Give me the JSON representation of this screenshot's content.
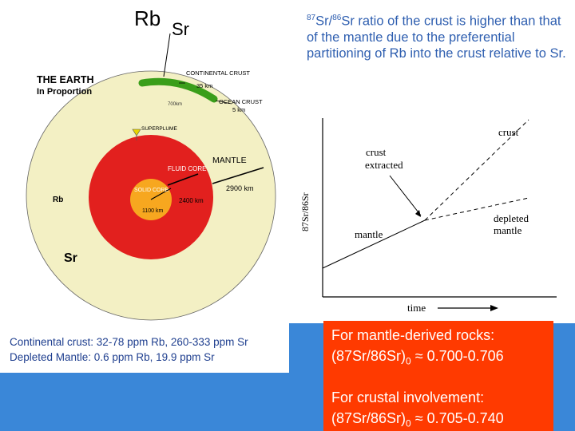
{
  "earth": {
    "rb_top": "Rb",
    "sr_top": "Sr",
    "title": "THE EARTH",
    "subtitle": "In Proportion",
    "continental_crust": "CONTINENTAL CRUST",
    "continental_km": "35 km",
    "ocean_crust": "OCEAN CRUST",
    "ocean_km": "5 km",
    "small_km": "700km",
    "superplume": "SUPERPLUME",
    "mantle": "MANTLE",
    "mantle_km": "2900 km",
    "fluid_core": "FLUID CORE",
    "fluid_km": "2400 km",
    "solid_core": "SOLID CORE",
    "solid_km": "1100 km",
    "rb_inside": "Rb",
    "sr_inside": "Sr",
    "colors": {
      "mantle": "#f3f0c4",
      "fluid_core": "#e2201e",
      "solid_core": "#f7a71f",
      "crust": "#3a9e1a"
    }
  },
  "captions": {
    "line1": "Continental crust: 32-78 ppm Rb, 260-333 ppm Sr",
    "line2": "Depleted Mantle: 0.6 ppm Rb, 19.9 ppm Sr"
  },
  "explanation": {
    "sup1": "87",
    "t1": "Sr/",
    "sup2": "86",
    "t2": "Sr ratio of the crust is higher than that of the mantle due to the preferential partitioning of Rb into the crust relative to Sr."
  },
  "evolution_plot": {
    "ylabel": "87Sr/86Sr",
    "xlabel": "time",
    "crust": "crust",
    "crust_extracted_1": "crust",
    "crust_extracted_2": "extracted",
    "mantle": "mantle",
    "depleted_1": "depleted",
    "depleted_2": "mantle"
  },
  "red_box": {
    "mantle_heading": "For mantle-derived rocks:",
    "mantle_value_prefix": "(87Sr/86Sr)",
    "mantle_value_sub": "0",
    "mantle_value_suffix": " ≈ 0.700-0.706",
    "crust_heading": "For crustal involvement:",
    "crust_value_prefix": "(87Sr/86Sr)",
    "crust_value_sub": "0",
    "crust_value_suffix": " ≈ 0.705-0.740"
  }
}
